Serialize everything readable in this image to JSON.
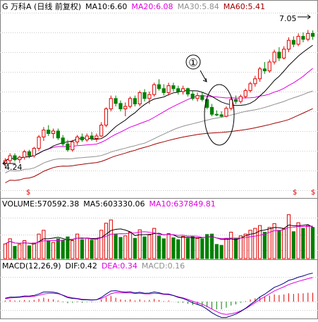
{
  "header": {
    "prefix": "G 万科A (日线 前复权)",
    "ma_items": [
      {
        "label": "MA10:6.60",
        "color": "#000000"
      },
      {
        "label": "MA20:6.08",
        "color": "#e000e0"
      },
      {
        "label": "MA30:5.84",
        "color": "#909090"
      },
      {
        "label": "MA60:5.41",
        "color": "#a00000"
      }
    ]
  },
  "volume_header": [
    {
      "label": "VOLUME:570592.38",
      "color": "#000000"
    },
    {
      "label": "MA5:603330.06",
      "color": "#000000"
    },
    {
      "label": "MA10:637849.81",
      "color": "#e000e0"
    }
  ],
  "macd_header": [
    {
      "label": "MACD(12,26,9)",
      "color": "#000000"
    },
    {
      "label": "DIF:0.42",
      "color": "#000000"
    },
    {
      "label": "DEA:0.34",
      "color": "#e000e0"
    },
    {
      "label": "MACD:0.16",
      "color": "#909090"
    }
  ],
  "annotations": {
    "high_label": "7.05",
    "low_label": "4.24",
    "circle_marker": "①",
    "event_marks": [
      "$",
      "$",
      "$"
    ]
  },
  "colors": {
    "up": "#e00000",
    "down": "#008000",
    "ma10": "#000000",
    "ma20": "#e000e0",
    "ma30": "#909090",
    "ma60": "#a00000",
    "grid": "#c8c8c8",
    "border": "#808080"
  },
  "chart_data": {
    "type": "candlestick",
    "ylim": [
      3.8,
      7.4
    ],
    "candles": [
      {
        "o": 4.35,
        "h": 4.45,
        "l": 4.24,
        "c": 4.4
      },
      {
        "o": 4.4,
        "h": 4.55,
        "l": 4.35,
        "c": 4.5
      },
      {
        "o": 4.5,
        "h": 4.55,
        "l": 4.38,
        "c": 4.42
      },
      {
        "o": 4.42,
        "h": 4.5,
        "l": 4.35,
        "c": 4.47
      },
      {
        "o": 4.47,
        "h": 4.62,
        "l": 4.42,
        "c": 4.58
      },
      {
        "o": 4.58,
        "h": 4.62,
        "l": 4.45,
        "c": 4.5
      },
      {
        "o": 4.5,
        "h": 4.68,
        "l": 4.46,
        "c": 4.65
      },
      {
        "o": 4.65,
        "h": 4.92,
        "l": 4.6,
        "c": 4.88
      },
      {
        "o": 4.88,
        "h": 5.08,
        "l": 4.8,
        "c": 5.02
      },
      {
        "o": 5.02,
        "h": 5.12,
        "l": 4.9,
        "c": 4.95
      },
      {
        "o": 4.95,
        "h": 5.05,
        "l": 4.85,
        "c": 5.0
      },
      {
        "o": 5.0,
        "h": 5.05,
        "l": 4.82,
        "c": 4.86
      },
      {
        "o": 4.86,
        "h": 4.92,
        "l": 4.7,
        "c": 4.74
      },
      {
        "o": 4.74,
        "h": 4.82,
        "l": 4.58,
        "c": 4.62
      },
      {
        "o": 4.62,
        "h": 4.82,
        "l": 4.58,
        "c": 4.78
      },
      {
        "o": 4.78,
        "h": 4.92,
        "l": 4.72,
        "c": 4.88
      },
      {
        "o": 4.88,
        "h": 4.95,
        "l": 4.78,
        "c": 4.82
      },
      {
        "o": 4.82,
        "h": 4.95,
        "l": 4.78,
        "c": 4.9
      },
      {
        "o": 4.9,
        "h": 4.98,
        "l": 4.8,
        "c": 4.85
      },
      {
        "o": 4.85,
        "h": 4.95,
        "l": 4.78,
        "c": 4.9
      },
      {
        "o": 4.9,
        "h": 5.18,
        "l": 4.88,
        "c": 5.12
      },
      {
        "o": 5.12,
        "h": 5.48,
        "l": 5.08,
        "c": 5.45
      },
      {
        "o": 5.45,
        "h": 5.72,
        "l": 5.4,
        "c": 5.66
      },
      {
        "o": 5.66,
        "h": 5.72,
        "l": 5.5,
        "c": 5.56
      },
      {
        "o": 5.56,
        "h": 5.62,
        "l": 5.4,
        "c": 5.45
      },
      {
        "o": 5.45,
        "h": 5.58,
        "l": 5.3,
        "c": 5.5
      },
      {
        "o": 5.5,
        "h": 5.7,
        "l": 5.46,
        "c": 5.66
      },
      {
        "o": 5.66,
        "h": 5.72,
        "l": 5.5,
        "c": 5.55
      },
      {
        "o": 5.55,
        "h": 5.82,
        "l": 5.5,
        "c": 5.78
      },
      {
        "o": 5.78,
        "h": 5.85,
        "l": 5.6,
        "c": 5.66
      },
      {
        "o": 5.66,
        "h": 5.8,
        "l": 5.55,
        "c": 5.74
      },
      {
        "o": 5.74,
        "h": 5.98,
        "l": 5.7,
        "c": 5.94
      },
      {
        "o": 5.94,
        "h": 6.05,
        "l": 5.82,
        "c": 5.86
      },
      {
        "o": 5.86,
        "h": 5.95,
        "l": 5.72,
        "c": 5.78
      },
      {
        "o": 5.78,
        "h": 5.98,
        "l": 5.72,
        "c": 5.92
      },
      {
        "o": 5.92,
        "h": 5.98,
        "l": 5.8,
        "c": 5.86
      },
      {
        "o": 5.86,
        "h": 5.92,
        "l": 5.74,
        "c": 5.8
      },
      {
        "o": 5.8,
        "h": 5.92,
        "l": 5.74,
        "c": 5.86
      },
      {
        "o": 5.86,
        "h": 5.88,
        "l": 5.7,
        "c": 5.75
      },
      {
        "o": 5.75,
        "h": 5.82,
        "l": 5.62,
        "c": 5.66
      },
      {
        "o": 5.66,
        "h": 5.78,
        "l": 5.6,
        "c": 5.72
      },
      {
        "o": 5.72,
        "h": 5.8,
        "l": 5.6,
        "c": 5.64
      },
      {
        "o": 5.64,
        "h": 5.7,
        "l": 5.44,
        "c": 5.48
      },
      {
        "o": 5.48,
        "h": 5.55,
        "l": 5.3,
        "c": 5.34
      },
      {
        "o": 5.34,
        "h": 5.42,
        "l": 5.3,
        "c": 5.33
      },
      {
        "o": 5.33,
        "h": 5.4,
        "l": 5.28,
        "c": 5.3
      },
      {
        "o": 5.3,
        "h": 5.5,
        "l": 5.28,
        "c": 5.46
      },
      {
        "o": 5.46,
        "h": 5.7,
        "l": 5.42,
        "c": 5.64
      },
      {
        "o": 5.64,
        "h": 5.72,
        "l": 5.55,
        "c": 5.6
      },
      {
        "o": 5.6,
        "h": 5.74,
        "l": 5.56,
        "c": 5.7
      },
      {
        "o": 5.7,
        "h": 5.86,
        "l": 5.66,
        "c": 5.82
      },
      {
        "o": 5.82,
        "h": 6.0,
        "l": 5.78,
        "c": 5.96
      },
      {
        "o": 5.96,
        "h": 6.12,
        "l": 5.9,
        "c": 6.06
      },
      {
        "o": 6.06,
        "h": 6.3,
        "l": 6.0,
        "c": 6.26
      },
      {
        "o": 6.26,
        "h": 6.4,
        "l": 6.16,
        "c": 6.22
      },
      {
        "o": 6.22,
        "h": 6.45,
        "l": 6.18,
        "c": 6.4
      },
      {
        "o": 6.4,
        "h": 6.65,
        "l": 6.35,
        "c": 6.6
      },
      {
        "o": 6.6,
        "h": 6.7,
        "l": 6.42,
        "c": 6.48
      },
      {
        "o": 6.48,
        "h": 6.72,
        "l": 6.45,
        "c": 6.66
      },
      {
        "o": 6.66,
        "h": 6.9,
        "l": 6.6,
        "c": 6.84
      },
      {
        "o": 6.84,
        "h": 6.92,
        "l": 6.7,
        "c": 6.76
      },
      {
        "o": 6.76,
        "h": 6.98,
        "l": 6.72,
        "c": 6.92
      },
      {
        "o": 6.92,
        "h": 7.0,
        "l": 6.8,
        "c": 6.86
      },
      {
        "o": 6.86,
        "h": 7.05,
        "l": 6.82,
        "c": 6.98
      },
      {
        "o": 6.98,
        "h": 7.04,
        "l": 6.85,
        "c": 6.92
      }
    ],
    "volume": [
      310,
      420,
      260,
      300,
      380,
      270,
      330,
      520,
      600,
      380,
      340,
      420,
      390,
      460,
      380,
      520,
      400,
      430,
      390,
      410,
      600,
      750,
      820,
      520,
      450,
      480,
      560,
      430,
      610,
      460,
      500,
      640,
      480,
      420,
      530,
      440,
      400,
      470,
      430,
      470,
      430,
      420,
      510,
      520,
      300,
      280,
      430,
      560,
      430,
      480,
      520,
      600,
      640,
      700,
      560,
      660,
      740,
      600,
      630,
      930,
      570,
      760,
      640,
      700,
      660
    ],
    "volume_ylim": [
      0,
      1000
    ],
    "macd_hist": [
      0.02,
      0.03,
      0.02,
      0.02,
      0.03,
      0.02,
      0.03,
      0.05,
      0.07,
      0.05,
      0.04,
      0.02,
      -0.01,
      -0.03,
      -0.02,
      -0.01,
      -0.02,
      -0.01,
      -0.01,
      0.0,
      0.04,
      0.08,
      0.1,
      0.07,
      0.04,
      0.03,
      0.04,
      0.02,
      0.04,
      0.02,
      0.03,
      0.05,
      0.03,
      0.01,
      0.02,
      0.0,
      -0.02,
      -0.02,
      -0.04,
      -0.06,
      -0.06,
      -0.07,
      -0.1,
      -0.13,
      -0.14,
      -0.14,
      -0.11,
      -0.07,
      -0.05,
      -0.02,
      0.01,
      0.04,
      0.06,
      0.09,
      0.09,
      0.11,
      0.13,
      0.12,
      0.13,
      0.15,
      0.14,
      0.15,
      0.15,
      0.16,
      0.16
    ],
    "macd_ylim": [
      -0.28,
      0.55
    ]
  }
}
